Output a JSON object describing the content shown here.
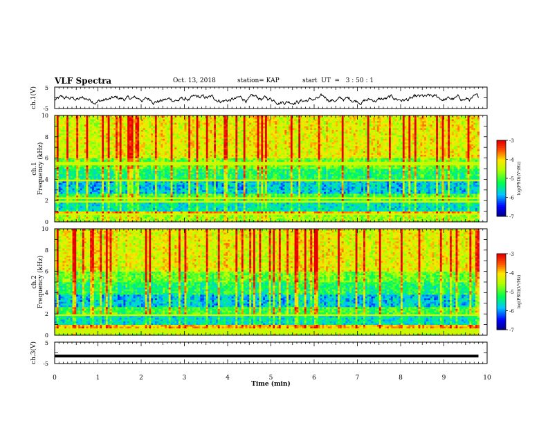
{
  "header": {
    "title": "VLF Spectra",
    "date": "Oct. 13, 2018",
    "station": "station= KAP",
    "start": "start  UT  =   3 : 50 : 1"
  },
  "chart_data": [
    {
      "type": "line",
      "panel": "ch1-waveform",
      "ylabel": "ch.1(V)",
      "ylim": [
        -5,
        5
      ],
      "yticks": [
        "5",
        "-5"
      ],
      "xlim": [
        0,
        10
      ],
      "trace": "noisy waveform across 0–9.8 min, roughly between -3 and 1.5 V"
    },
    {
      "type": "heatmap",
      "panel": "ch1-spectrogram",
      "ylabel_line1": "ch.1",
      "ylabel_line2": "Frequency  (kHz)",
      "ylim": [
        0,
        10
      ],
      "yticks": [
        "0",
        "2",
        "4",
        "6",
        "8",
        "10"
      ],
      "xlim": [
        0,
        10
      ],
      "colorbar": {
        "label": "log(PSD)(V²/Hz)",
        "range": [
          -7,
          -3
        ],
        "ticks": [
          "-3",
          "-4",
          "-5",
          "-6",
          "-7"
        ]
      }
    },
    {
      "type": "heatmap",
      "panel": "ch2-spectrogram",
      "ylabel_line1": "ch.2",
      "ylabel_line2": "Frequency  (kHz)",
      "ylim": [
        0,
        10
      ],
      "yticks": [
        "0",
        "2",
        "4",
        "6",
        "8",
        "10"
      ],
      "xlim": [
        0,
        10
      ],
      "colorbar": {
        "label": "log(PSD)(V²/Hz)",
        "range": [
          -7,
          -3
        ],
        "ticks": [
          "-3",
          "-4",
          "-5",
          "-6",
          "-7"
        ]
      }
    },
    {
      "type": "line",
      "panel": "ch3-waveform",
      "ylabel": "ch.3(V)",
      "ylim": [
        -5,
        5
      ],
      "yticks": [
        "5",
        "-5"
      ],
      "xlim": [
        0,
        10
      ],
      "xlabel": "Time  (min)",
      "xticks": [
        "0",
        "1",
        "2",
        "3",
        "4",
        "5",
        "6",
        "7",
        "8",
        "9",
        "10"
      ],
      "trace": "flat line near -1.5 V"
    }
  ]
}
